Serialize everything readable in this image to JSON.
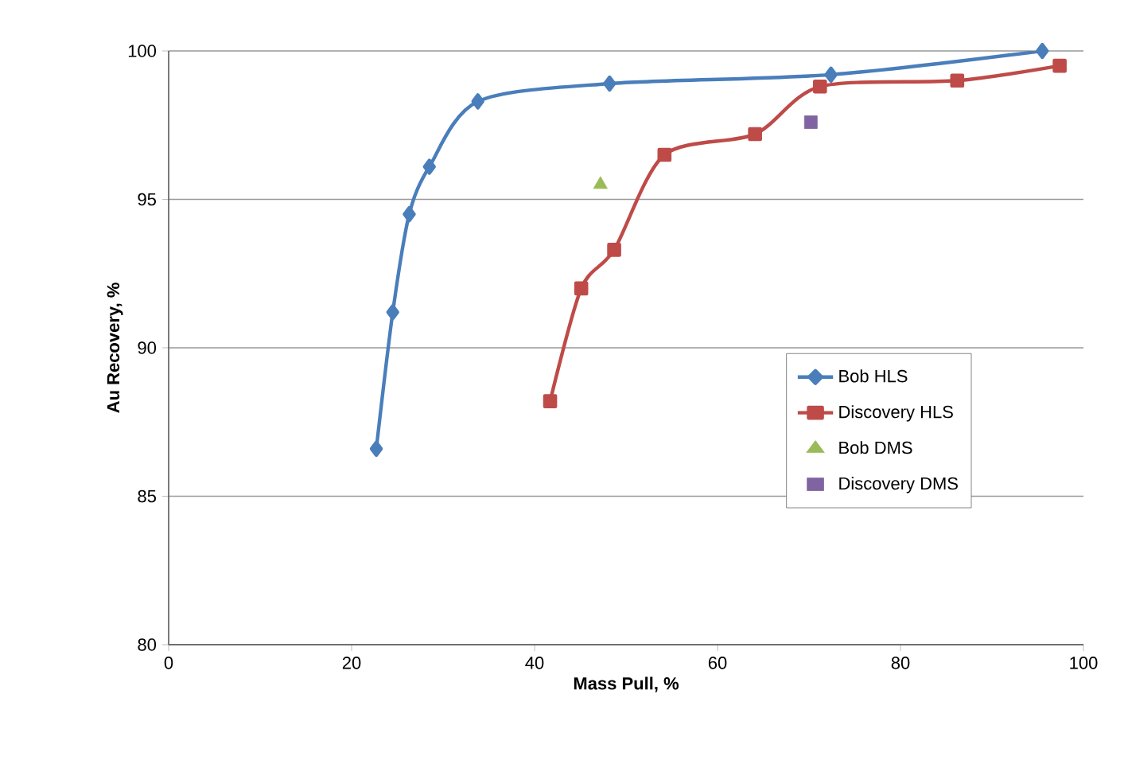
{
  "chart_data": {
    "type": "line",
    "xlabel": "Mass Pull, %",
    "ylabel": "Au Recovery, %",
    "xlim": [
      0,
      100
    ],
    "ylim": [
      80,
      100
    ],
    "xticks": [
      0,
      20,
      40,
      60,
      80,
      100
    ],
    "yticks": [
      80,
      85,
      90,
      95,
      100
    ],
    "grid": "y",
    "legend": "right",
    "series": [
      {
        "name": "Bob HLS",
        "marker": "diamond",
        "color": "#4a7ebb",
        "x": [
          22.7,
          24.5,
          26.3,
          28.5,
          33.8,
          48.2,
          72.4,
          95.5
        ],
        "values": [
          86.6,
          91.2,
          94.5,
          96.1,
          98.3,
          98.9,
          99.2,
          100.0
        ]
      },
      {
        "name": "Discovery HLS",
        "marker": "square",
        "color": "#be4b48",
        "x": [
          41.7,
          45.1,
          48.7,
          54.2,
          64.1,
          71.2,
          86.2,
          97.4
        ],
        "values": [
          88.2,
          92.0,
          93.3,
          96.5,
          97.2,
          98.8,
          99.0,
          99.5
        ]
      },
      {
        "name": "Bob DMS",
        "type": "scatter",
        "marker": "triangle",
        "color": "#9bbb59",
        "x": [
          47.2
        ],
        "values": [
          95.5
        ]
      },
      {
        "name": "Discovery DMS",
        "type": "scatter",
        "marker": "square",
        "color": "#8064a2",
        "x": [
          70.2
        ],
        "values": [
          97.6
        ]
      }
    ]
  }
}
